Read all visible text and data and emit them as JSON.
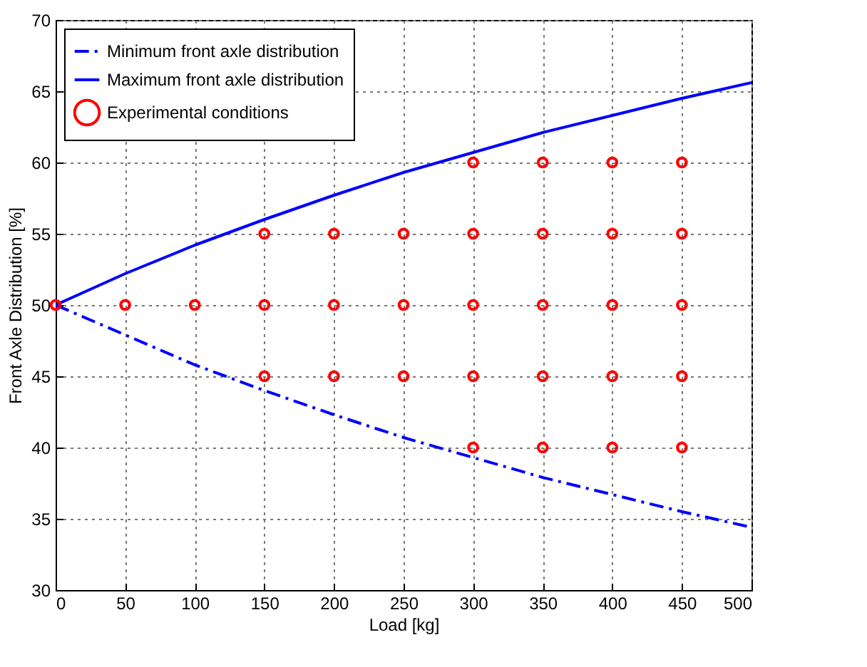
{
  "chart_data": {
    "type": "line",
    "xlabel": "Load [kg]",
    "ylabel": "Front Axle Distribution [%]",
    "xlim": [
      0,
      500
    ],
    "xticks": [
      0,
      50,
      100,
      150,
      200,
      250,
      300,
      350,
      400,
      450,
      500
    ],
    "ylim": [
      30,
      70
    ],
    "yticks": [
      30,
      35,
      40,
      45,
      50,
      55,
      60,
      65,
      70
    ],
    "grid": true,
    "legend": "top left",
    "series": [
      {
        "name": "Minimum front axle distribution",
        "line_style": "dashed",
        "color": "#0000ff",
        "x": [
          0,
          50,
          100,
          150,
          200,
          250,
          300,
          350,
          400,
          450,
          500
        ],
        "values": [
          50,
          47.9,
          45.8,
          44.0,
          42.3,
          40.7,
          39.3,
          37.9,
          36.7,
          35.5,
          34.4
        ]
      },
      {
        "name": "Maximum front axle distribution",
        "line_style": "solid",
        "color": "#0000ff",
        "x": [
          0,
          50,
          100,
          150,
          200,
          250,
          300,
          350,
          400,
          450,
          500
        ],
        "values": [
          50,
          52.2,
          54.2,
          56.0,
          57.7,
          59.3,
          60.7,
          62.1,
          63.3,
          64.5,
          65.6
        ]
      },
      {
        "name": "Experimental conditions",
        "type": "scatter",
        "marker": "circle",
        "color": "#ff0000",
        "x": [
          0,
          50,
          100,
          150,
          150,
          150,
          200,
          200,
          200,
          250,
          250,
          250,
          300,
          300,
          300,
          300,
          300,
          350,
          350,
          350,
          350,
          350,
          400,
          400,
          400,
          400,
          400,
          450,
          450,
          450,
          450,
          450
        ],
        "values": [
          50,
          50,
          50,
          45,
          50,
          55,
          45,
          50,
          55,
          45,
          50,
          55,
          40,
          45,
          50,
          55,
          60,
          40,
          45,
          50,
          55,
          60,
          40,
          45,
          50,
          55,
          60,
          40,
          45,
          50,
          55,
          60
        ]
      }
    ]
  }
}
